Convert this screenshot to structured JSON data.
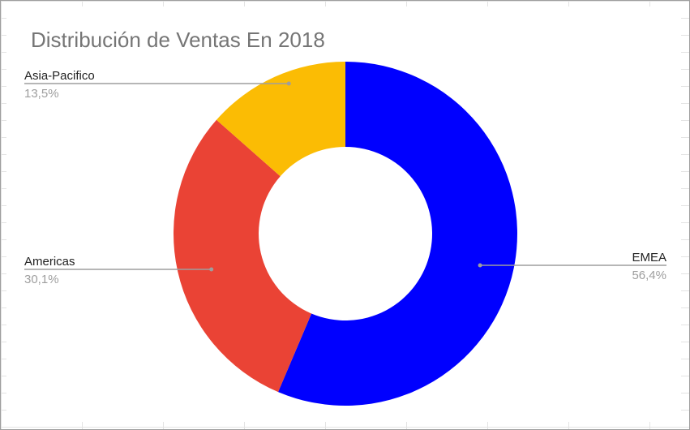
{
  "chart_data": {
    "type": "pie",
    "donut": true,
    "title": "Distribución de Ventas En 2018",
    "legend": "labels-outside",
    "slices": [
      {
        "label": "EMEA",
        "value": 56.4,
        "value_label": "56,4%",
        "color": "#0000ff"
      },
      {
        "label": "Americas",
        "value": 30.1,
        "value_label": "30,1%",
        "color": "#ea4335"
      },
      {
        "label": "Asia-Pacifico",
        "value": 13.5,
        "value_label": "13,5%",
        "color": "#fbbc04"
      }
    ]
  }
}
